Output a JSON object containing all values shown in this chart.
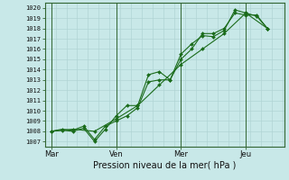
{
  "background_color": "#c8e8e8",
  "grid_color": "#b0d4d4",
  "line_color": "#1a6b1a",
  "xlabel": "Pression niveau de la mer( hPa )",
  "ylim": [
    1006.5,
    1020.5
  ],
  "yticks": [
    1007,
    1008,
    1009,
    1010,
    1011,
    1012,
    1013,
    1014,
    1015,
    1016,
    1017,
    1018,
    1019,
    1020
  ],
  "xtick_labels": [
    "Mar",
    "Ven",
    "Mer",
    "Jeu"
  ],
  "xtick_positions": [
    0,
    3,
    6,
    9
  ],
  "vline_positions": [
    0,
    3,
    6,
    9
  ],
  "x_min": -0.3,
  "x_max": 10.8,
  "series1": {
    "x": [
      0,
      0.5,
      1.0,
      1.5,
      2.0,
      2.5,
      3.0,
      3.5,
      4.0,
      4.5,
      5.0,
      5.5,
      6.0,
      6.5,
      7.0,
      7.5,
      8.0,
      8.5,
      9.0,
      9.5,
      10.0
    ],
    "y": [
      1008.0,
      1008.2,
      1008.1,
      1008.5,
      1007.2,
      1008.5,
      1009.0,
      1009.5,
      1010.3,
      1012.8,
      1013.0,
      1013.0,
      1015.0,
      1016.0,
      1017.5,
      1017.5,
      1018.0,
      1019.5,
      1019.3,
      1019.3,
      1018.0
    ]
  },
  "series2": {
    "x": [
      0,
      0.5,
      1.0,
      1.5,
      2.0,
      2.5,
      3.0,
      3.5,
      4.0,
      4.5,
      5.0,
      5.5,
      6.0,
      6.5,
      7.0,
      7.5,
      8.0,
      8.5,
      9.0,
      9.5,
      10.0
    ],
    "y": [
      1008.0,
      1008.1,
      1008.0,
      1008.3,
      1007.0,
      1008.2,
      1009.5,
      1010.5,
      1010.5,
      1013.5,
      1013.8,
      1013.0,
      1015.5,
      1016.5,
      1017.3,
      1017.2,
      1017.8,
      1019.8,
      1019.5,
      1019.2,
      1018.0
    ]
  },
  "series3": {
    "x": [
      0,
      1.0,
      2.0,
      3.0,
      4.0,
      5.0,
      6.0,
      7.0,
      8.0,
      9.0,
      10.0
    ],
    "y": [
      1008.0,
      1008.2,
      1008.0,
      1009.2,
      1010.5,
      1012.5,
      1014.5,
      1016.0,
      1017.5,
      1019.5,
      1018.0
    ]
  },
  "xlabel_fontsize": 7,
  "ytick_fontsize": 5,
  "xtick_fontsize": 6,
  "spine_color": "#336633"
}
